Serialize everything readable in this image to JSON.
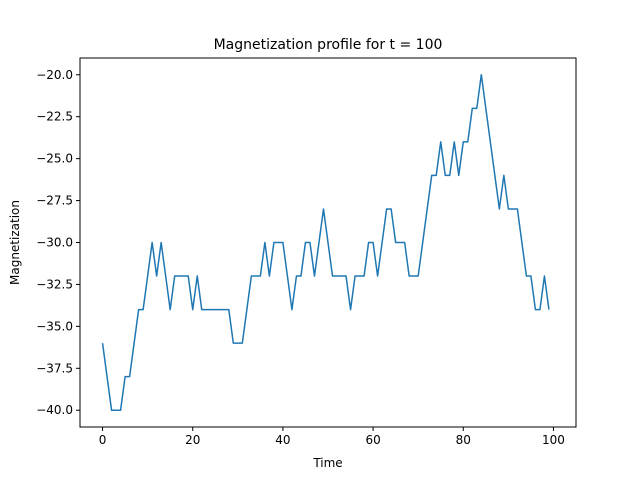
{
  "chart_data": {
    "type": "line",
    "title": "Magnetization profile for t = 100",
    "xlabel": "Time",
    "ylabel": "Magnetization",
    "xlim": [
      -5,
      105
    ],
    "ylim": [
      -41,
      -19
    ],
    "xticks": [
      0,
      20,
      40,
      60,
      80,
      100
    ],
    "xtick_labels": [
      "0",
      "20",
      "40",
      "60",
      "80",
      "100"
    ],
    "yticks": [
      -40.0,
      -37.5,
      -35.0,
      -32.5,
      -30.0,
      -27.5,
      -25.0,
      -22.5,
      -20.0
    ],
    "ytick_labels": [
      "−40.0",
      "−37.5",
      "−35.0",
      "−32.5",
      "−30.0",
      "−27.5",
      "−25.0",
      "−22.5",
      "−20.0"
    ],
    "grid": false,
    "series": [
      {
        "color": "#1f77b4",
        "x": [
          0,
          1,
          2,
          3,
          4,
          5,
          6,
          7,
          8,
          9,
          10,
          11,
          12,
          13,
          14,
          15,
          16,
          17,
          18,
          19,
          20,
          21,
          22,
          23,
          24,
          25,
          26,
          27,
          28,
          29,
          30,
          31,
          32,
          33,
          34,
          35,
          36,
          37,
          38,
          39,
          40,
          41,
          42,
          43,
          44,
          45,
          46,
          47,
          48,
          49,
          50,
          51,
          52,
          53,
          54,
          55,
          56,
          57,
          58,
          59,
          60,
          61,
          62,
          63,
          64,
          65,
          66,
          67,
          68,
          69,
          70,
          71,
          72,
          73,
          74,
          75,
          76,
          77,
          78,
          79,
          80,
          81,
          82,
          83,
          84,
          85,
          86,
          87,
          88,
          89,
          90,
          91,
          92,
          93,
          94,
          95,
          96,
          97,
          98,
          99
        ],
        "y": [
          -36,
          -38,
          -40,
          -40,
          -40,
          -38,
          -38,
          -36,
          -34,
          -34,
          -32,
          -30,
          -32,
          -30,
          -32,
          -34,
          -32,
          -32,
          -32,
          -32,
          -34,
          -32,
          -34,
          -34,
          -34,
          -34,
          -34,
          -34,
          -34,
          -36,
          -36,
          -36,
          -34,
          -32,
          -32,
          -32,
          -30,
          -32,
          -30,
          -30,
          -30,
          -32,
          -34,
          -32,
          -32,
          -30,
          -30,
          -32,
          -30,
          -28,
          -30,
          -32,
          -32,
          -32,
          -32,
          -34,
          -32,
          -32,
          -32,
          -30,
          -30,
          -32,
          -30,
          -28,
          -28,
          -30,
          -30,
          -30,
          -32,
          -32,
          -32,
          -30,
          -28,
          -26,
          -26,
          -24,
          -26,
          -26,
          -24,
          -26,
          -24,
          -24,
          -22,
          -22,
          -20,
          -22,
          -24,
          -26,
          -28,
          -26,
          -28,
          -28,
          -28,
          -30,
          -32,
          -32,
          -34,
          -34,
          -32,
          -34
        ]
      }
    ]
  }
}
